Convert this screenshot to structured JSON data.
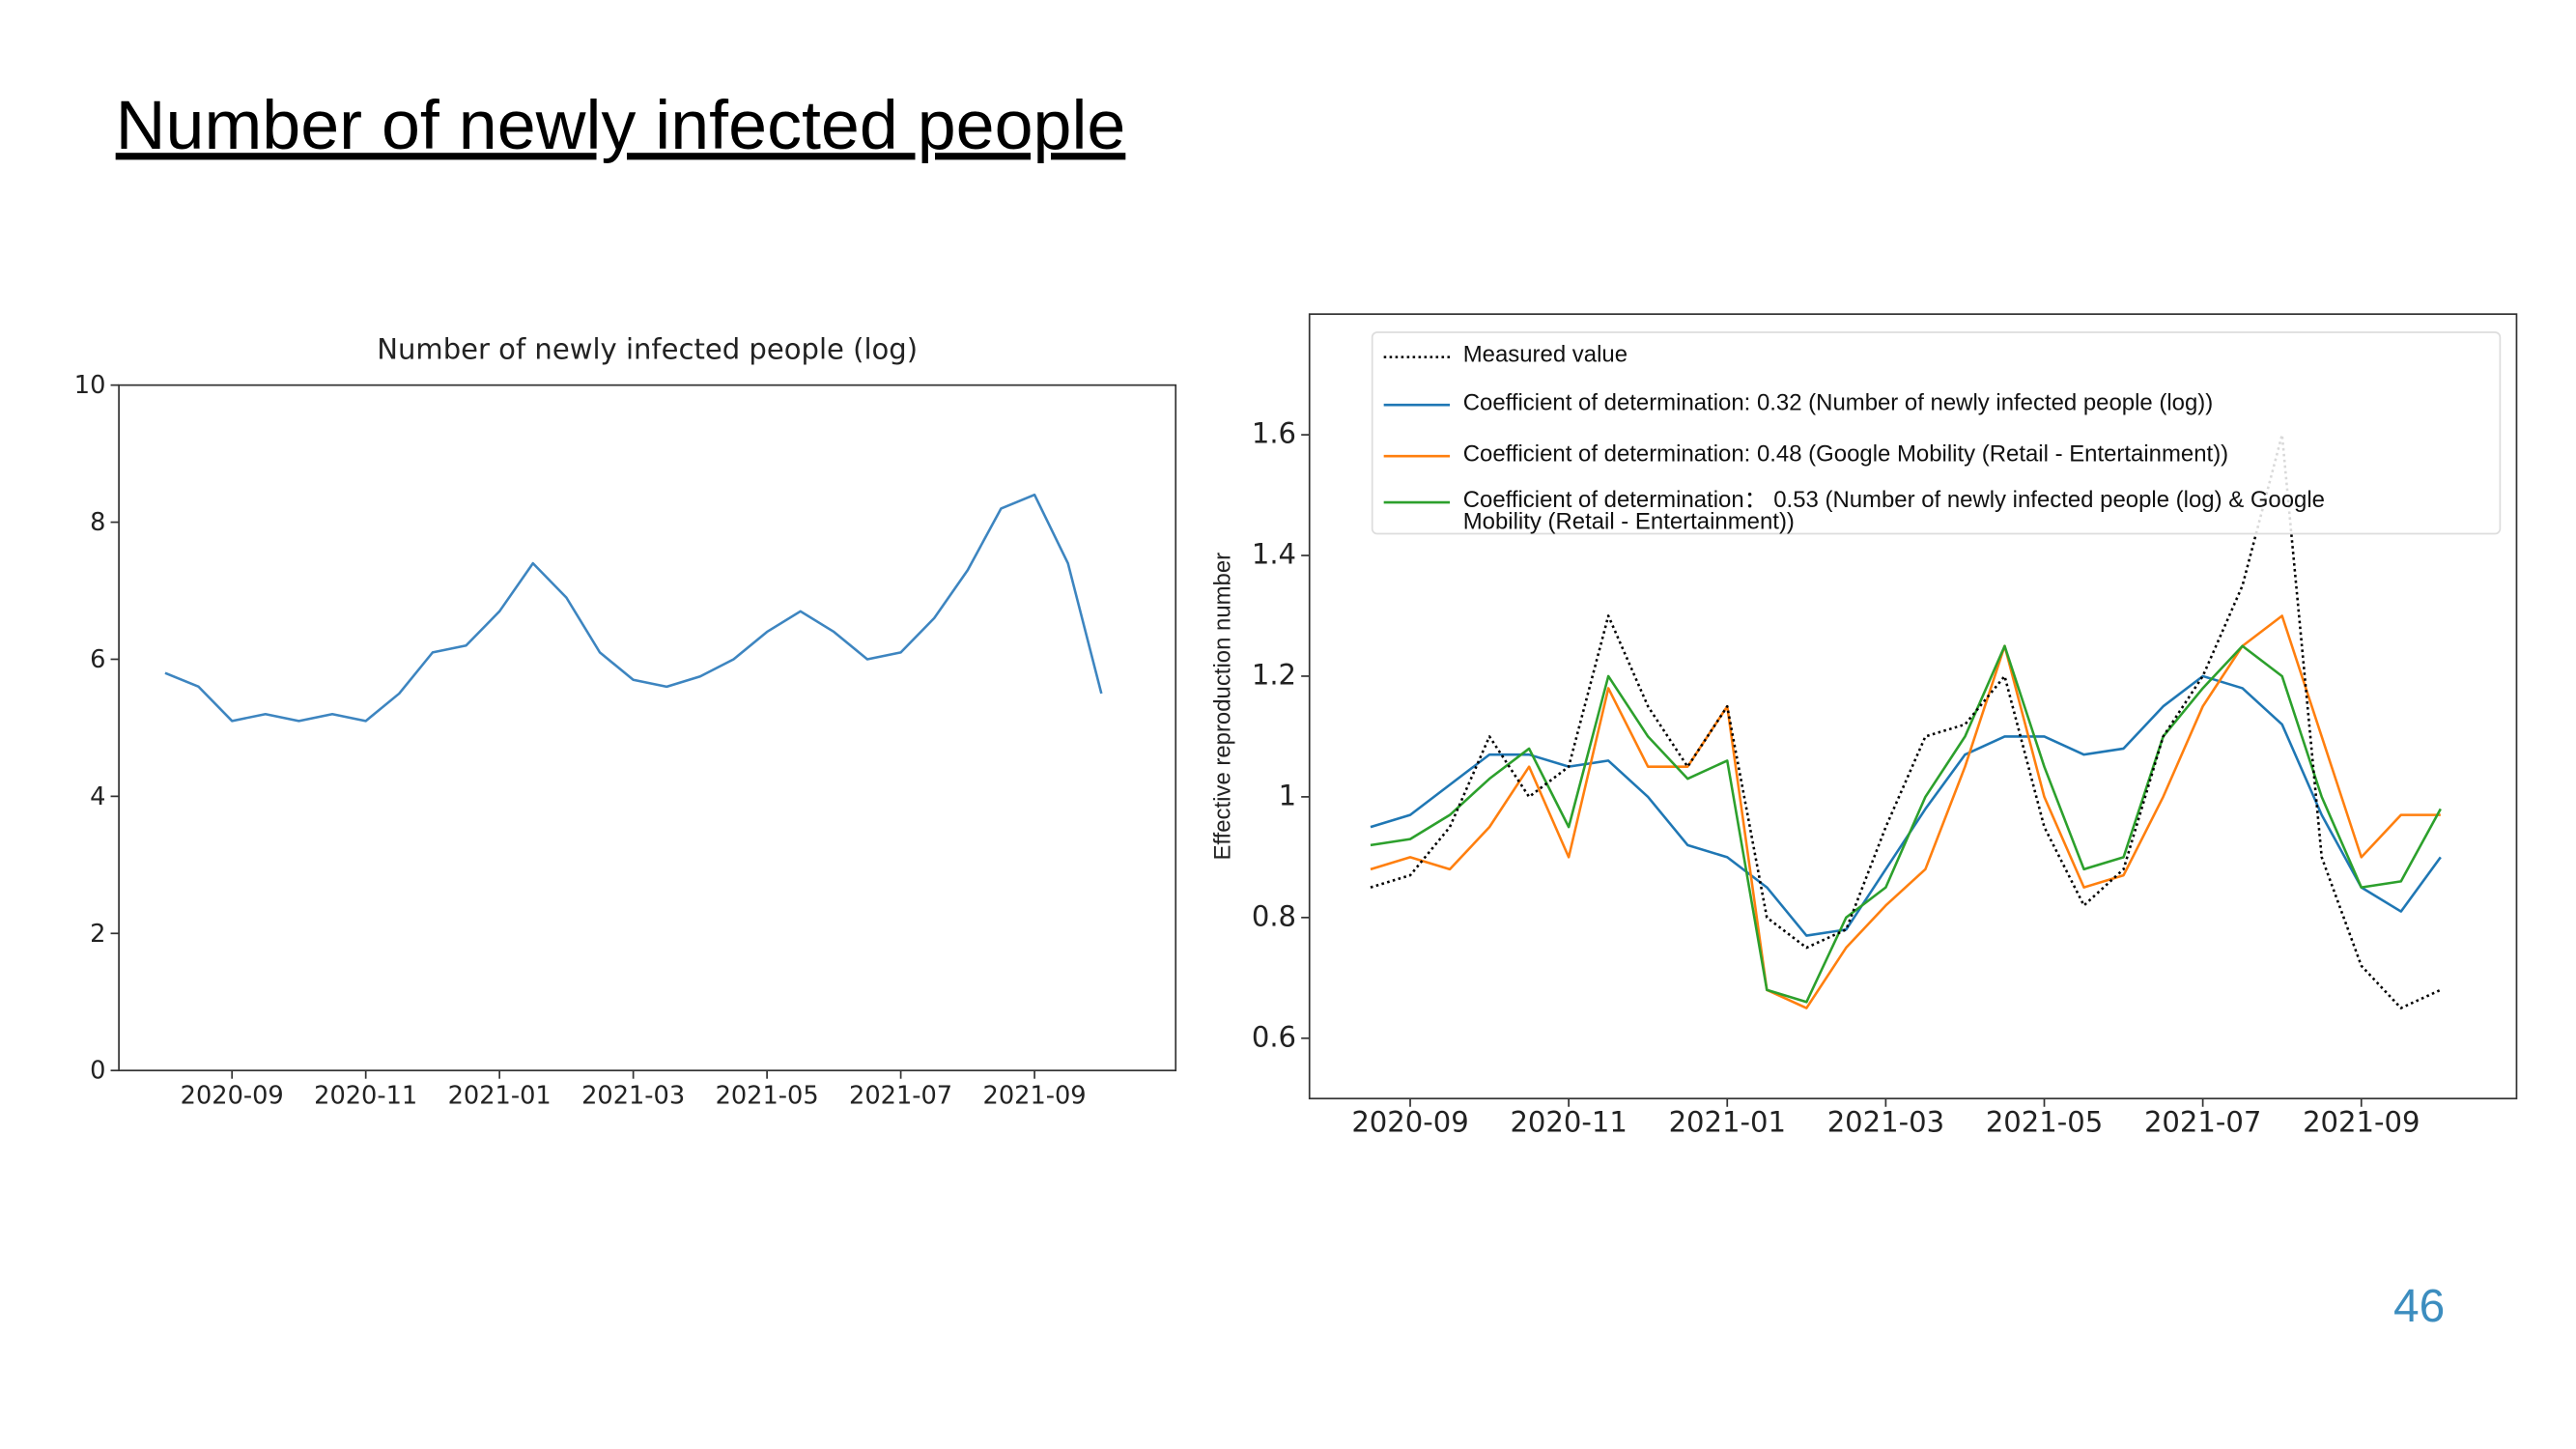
{
  "title": "Number of newly infected people",
  "page_number": "46",
  "chart_data": [
    {
      "type": "line",
      "title": "Number of newly infected people (log)",
      "categories": [
        null,
        null,
        "2020-09",
        null,
        null,
        null,
        "2020-11",
        null,
        null,
        null,
        "2021-01",
        null,
        null,
        null,
        "2021-03",
        null,
        null,
        null,
        "2021-05",
        null,
        null,
        null,
        "2021-07",
        null,
        null,
        null,
        "2021-09",
        null,
        null
      ],
      "series": [
        {
          "name": "Number of newly infected people (log)",
          "color": "#3d85c0",
          "values": [
            5.8,
            5.6,
            5.1,
            5.2,
            5.1,
            5.2,
            5.1,
            5.5,
            6.1,
            6.2,
            6.7,
            7.4,
            6.9,
            6.1,
            5.7,
            5.6,
            5.75,
            6.0,
            6.4,
            6.7,
            6.4,
            6.0,
            6.1,
            6.6,
            7.3,
            8.2,
            8.4,
            7.4,
            5.5
          ]
        }
      ],
      "ylim": [
        0,
        10
      ],
      "yticks": [
        0,
        2,
        4,
        6,
        8,
        10
      ],
      "grid": false
    },
    {
      "type": "line",
      "ylabel": "Effective reproduction number",
      "categories": [
        null,
        "2020-09",
        null,
        null,
        null,
        "2020-11",
        null,
        null,
        null,
        "2021-01",
        null,
        null,
        null,
        "2021-03",
        null,
        null,
        null,
        "2021-05",
        null,
        null,
        null,
        "2021-07",
        null,
        null,
        null,
        "2021-09",
        null,
        null
      ],
      "series": [
        {
          "name": "Measured value",
          "color": "#000000",
          "linestyle": "dotted",
          "values": [
            0.85,
            0.87,
            0.95,
            1.1,
            1.0,
            1.05,
            1.3,
            1.15,
            1.05,
            1.15,
            0.8,
            0.75,
            0.78,
            0.95,
            1.1,
            1.12,
            1.2,
            0.95,
            0.82,
            0.88,
            1.1,
            1.2,
            1.35,
            1.6,
            0.9,
            0.72,
            0.65,
            0.68
          ]
        },
        {
          "name": "Coefficient of determination: 0.32 (Number of newly infected people (log))",
          "color": "#1f77b4",
          "values": [
            0.95,
            0.97,
            1.02,
            1.07,
            1.07,
            1.05,
            1.06,
            1.0,
            0.92,
            0.9,
            0.85,
            0.77,
            0.78,
            0.88,
            0.98,
            1.07,
            1.1,
            1.1,
            1.07,
            1.08,
            1.15,
            1.2,
            1.18,
            1.12,
            0.97,
            0.85,
            0.81,
            0.9
          ]
        },
        {
          "name": "Coefficient of determination: 0.48 (Google Mobility (Retail - Entertainment))",
          "color": "#ff7f0e",
          "values": [
            0.88,
            0.9,
            0.88,
            0.95,
            1.05,
            0.9,
            1.18,
            1.05,
            1.05,
            1.15,
            0.68,
            0.65,
            0.75,
            0.82,
            0.88,
            1.05,
            1.25,
            1.0,
            0.85,
            0.87,
            1.0,
            1.15,
            1.25,
            1.3,
            1.1,
            0.9,
            0.97,
            0.97
          ]
        },
        {
          "name": "Coefficient of determination： 0.53 (Number of newly infected people (log) & Google Mobility (Retail - Entertainment))",
          "color": "#2ca02c",
          "values": [
            0.92,
            0.93,
            0.97,
            1.03,
            1.08,
            0.95,
            1.2,
            1.1,
            1.03,
            1.06,
            0.68,
            0.66,
            0.8,
            0.85,
            1.0,
            1.1,
            1.25,
            1.05,
            0.88,
            0.9,
            1.1,
            1.18,
            1.25,
            1.2,
            1.0,
            0.85,
            0.86,
            0.98
          ]
        }
      ],
      "ylim": [
        0.5,
        1.8
      ],
      "yticks": [
        0.6,
        0.8,
        1.0,
        1.2,
        1.4,
        1.6
      ],
      "grid": false
    }
  ]
}
